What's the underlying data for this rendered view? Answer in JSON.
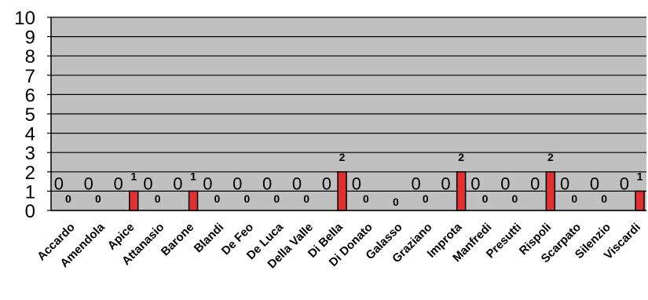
{
  "chart_data": {
    "type": "bar",
    "title": "",
    "xlabel": "",
    "ylabel": "",
    "ylim": [
      0,
      10
    ],
    "grid": true,
    "legend": "none",
    "colors": {
      "plot_background": "#c0c0c0",
      "bar_fill": "#e03030",
      "bar_stroke": "#000000",
      "gridline": "#000000"
    },
    "y_ticks": [
      "0",
      "1",
      "2",
      "3",
      "4",
      "5",
      "6",
      "7",
      "8",
      "9",
      "10"
    ],
    "categories": [
      "Accardo",
      "Amendola",
      "Apice",
      "Attanasio",
      "Barone",
      "Blandi",
      "De Feo",
      "De Luca",
      "Della Valle",
      "Di Bella",
      "Di Donato",
      "Galasso",
      "Graziano",
      "Improta",
      "Manfredi",
      "Presutti",
      "Rispoli",
      "Scarpato",
      "Silenzio",
      "Viscardi"
    ],
    "values": [
      0,
      0,
      1,
      0,
      1,
      0,
      0,
      0,
      0,
      2,
      0,
      0,
      0,
      2,
      0,
      0,
      2,
      0,
      0,
      1
    ],
    "data_labels": [
      "0",
      "0",
      "1",
      "0",
      "1",
      "0",
      "0",
      "0",
      "0",
      "2",
      "0",
      "0",
      "0",
      "2",
      "0",
      "0",
      "2",
      "0",
      "0",
      "1"
    ],
    "marker_labels": [
      "0",
      "0",
      "0",
      "0",
      "0",
      "0",
      "0",
      "0",
      "0",
      "0",
      "0",
      "",
      "0",
      "0",
      "0",
      "0",
      "0",
      "0",
      "0",
      "0"
    ]
  }
}
